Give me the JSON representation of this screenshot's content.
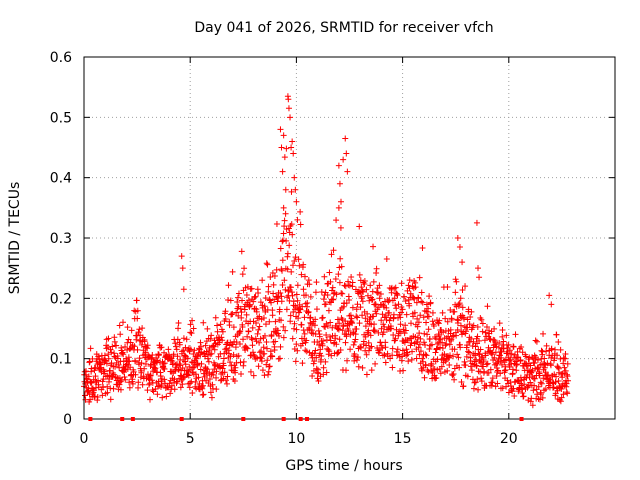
{
  "chart_data": {
    "type": "scatter",
    "title": "Day 041 of 2026, SRMTID for receiver vfch",
    "xlabel": "GPS time / hours",
    "ylabel": "SRMTID / TECUs",
    "xlim": [
      0,
      25
    ],
    "ylim": [
      0,
      0.6
    ],
    "xticks": [
      0,
      5,
      10,
      15,
      20
    ],
    "xtick_labels": [
      "0",
      "5",
      "10",
      "15",
      "20"
    ],
    "yticks": [
      0,
      0.1,
      0.2,
      0.3,
      0.4,
      0.5,
      0.6
    ],
    "ytick_labels": [
      "0",
      "0.1",
      "0.2",
      "0.3",
      "0.4",
      "0.5",
      "0.6"
    ],
    "grid": true,
    "marker": "+",
    "series_color": "#ff0000",
    "axis_markers_x": [
      0.3,
      1.8,
      2.3,
      4.6,
      7.5,
      9.4,
      10.2,
      10.5,
      20.6
    ],
    "trend": [
      [
        0.0,
        0.06
      ],
      [
        0.5,
        0.065
      ],
      [
        1.0,
        0.08
      ],
      [
        1.5,
        0.09
      ],
      [
        2.0,
        0.085
      ],
      [
        2.5,
        0.12
      ],
      [
        3.0,
        0.075
      ],
      [
        3.5,
        0.075
      ],
      [
        4.0,
        0.085
      ],
      [
        4.5,
        0.085
      ],
      [
        5.0,
        0.09
      ],
      [
        5.5,
        0.085
      ],
      [
        6.0,
        0.09
      ],
      [
        6.5,
        0.11
      ],
      [
        7.0,
        0.13
      ],
      [
        7.5,
        0.155
      ],
      [
        8.0,
        0.145
      ],
      [
        8.5,
        0.13
      ],
      [
        9.0,
        0.17
      ],
      [
        9.5,
        0.24
      ],
      [
        10.0,
        0.2
      ],
      [
        10.5,
        0.16
      ],
      [
        11.0,
        0.13
      ],
      [
        11.5,
        0.16
      ],
      [
        12.0,
        0.18
      ],
      [
        12.5,
        0.16
      ],
      [
        13.0,
        0.17
      ],
      [
        13.5,
        0.155
      ],
      [
        14.0,
        0.16
      ],
      [
        14.5,
        0.15
      ],
      [
        15.0,
        0.14
      ],
      [
        15.5,
        0.16
      ],
      [
        16.0,
        0.15
      ],
      [
        16.5,
        0.12
      ],
      [
        17.0,
        0.115
      ],
      [
        17.5,
        0.13
      ],
      [
        18.0,
        0.125
      ],
      [
        18.5,
        0.105
      ],
      [
        19.0,
        0.1
      ],
      [
        19.5,
        0.095
      ],
      [
        20.0,
        0.09
      ],
      [
        20.5,
        0.075
      ],
      [
        21.0,
        0.07
      ],
      [
        21.5,
        0.075
      ],
      [
        22.0,
        0.08
      ],
      [
        22.5,
        0.07
      ],
      [
        22.8,
        0.065
      ]
    ],
    "outliers": [
      [
        4.6,
        0.27
      ],
      [
        4.65,
        0.25
      ],
      [
        4.7,
        0.215
      ],
      [
        9.25,
        0.48
      ],
      [
        9.3,
        0.45
      ],
      [
        9.35,
        0.41
      ],
      [
        9.4,
        0.47
      ],
      [
        9.5,
        0.38
      ],
      [
        9.6,
        0.535
      ],
      [
        9.62,
        0.53
      ],
      [
        9.65,
        0.515
      ],
      [
        9.7,
        0.5
      ],
      [
        9.75,
        0.45
      ],
      [
        9.8,
        0.46
      ],
      [
        9.85,
        0.44
      ],
      [
        9.9,
        0.4
      ],
      [
        9.95,
        0.38
      ],
      [
        10.0,
        0.36
      ],
      [
        9.4,
        0.35
      ],
      [
        10.05,
        0.33
      ],
      [
        12.0,
        0.42
      ],
      [
        12.05,
        0.39
      ],
      [
        12.1,
        0.36
      ],
      [
        12.2,
        0.43
      ],
      [
        12.3,
        0.465
      ],
      [
        12.35,
        0.44
      ],
      [
        12.4,
        0.41
      ],
      [
        12.0,
        0.35
      ],
      [
        17.6,
        0.3
      ],
      [
        17.7,
        0.285
      ],
      [
        17.8,
        0.26
      ],
      [
        18.5,
        0.325
      ],
      [
        18.55,
        0.25
      ],
      [
        18.6,
        0.235
      ],
      [
        21.9,
        0.205
      ],
      [
        22.0,
        0.19
      ]
    ]
  }
}
